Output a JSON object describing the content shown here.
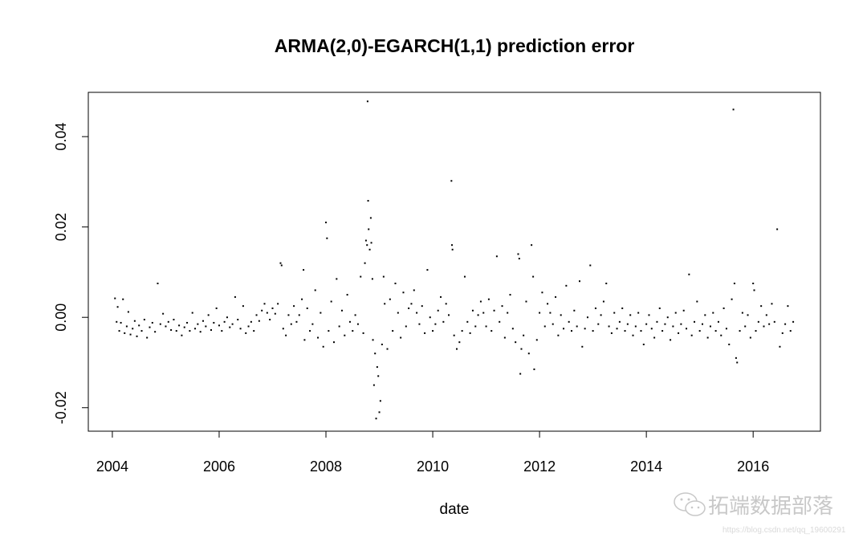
{
  "chart_data": {
    "type": "scatter",
    "title": "ARMA(2,0)-EGARCH(1,1) prediction error",
    "xlabel": "date",
    "ylabel": "",
    "xlim": [
      2003.55,
      2017.26
    ],
    "ylim": [
      -0.0252,
      0.0498
    ],
    "xticks": [
      2004,
      2006,
      2008,
      2010,
      2012,
      2014,
      2016
    ],
    "xtick_labels": [
      "2004",
      "2006",
      "2008",
      "2010",
      "2012",
      "2014",
      "2016"
    ],
    "yticks": [
      -0.02,
      0.0,
      0.02,
      0.04
    ],
    "ytick_labels": [
      "-0.02",
      "0.00",
      "0.02",
      "0.04"
    ],
    "grid": false,
    "marker_color": "#000000",
    "points": [
      [
        2004.05,
        0.0042
      ],
      [
        2004.08,
        -0.001
      ],
      [
        2004.1,
        0.0023
      ],
      [
        2004.13,
        -0.003
      ],
      [
        2004.16,
        -0.0012
      ],
      [
        2004.2,
        0.004
      ],
      [
        2004.23,
        -0.0035
      ],
      [
        2004.27,
        -0.002
      ],
      [
        2004.3,
        0.0012
      ],
      [
        2004.34,
        -0.0038
      ],
      [
        2004.38,
        -0.0025
      ],
      [
        2004.42,
        -0.0008
      ],
      [
        2004.46,
        -0.0042
      ],
      [
        2004.5,
        -0.0018
      ],
      [
        2004.55,
        -0.003
      ],
      [
        2004.6,
        -0.0005
      ],
      [
        2004.65,
        -0.0045
      ],
      [
        2004.7,
        -0.0022
      ],
      [
        2004.75,
        -0.0012
      ],
      [
        2004.8,
        -0.0032
      ],
      [
        2004.85,
        0.0075
      ],
      [
        2004.9,
        -0.0015
      ],
      [
        2004.95,
        0.0008
      ],
      [
        2005.0,
        -0.002
      ],
      [
        2005.05,
        -0.001
      ],
      [
        2005.1,
        -0.0028
      ],
      [
        2005.15,
        -0.0005
      ],
      [
        2005.2,
        -0.003
      ],
      [
        2005.25,
        -0.0018
      ],
      [
        2005.3,
        -0.004
      ],
      [
        2005.35,
        -0.0022
      ],
      [
        2005.4,
        -0.0012
      ],
      [
        2005.45,
        -0.003
      ],
      [
        2005.5,
        0.001
      ],
      [
        2005.55,
        -0.0025
      ],
      [
        2005.6,
        -0.0015
      ],
      [
        2005.65,
        -0.0032
      ],
      [
        2005.7,
        -0.0008
      ],
      [
        2005.75,
        -0.002
      ],
      [
        2005.8,
        0.0005
      ],
      [
        2005.85,
        -0.0028
      ],
      [
        2005.9,
        -0.0012
      ],
      [
        2005.95,
        0.002
      ],
      [
        2006.0,
        -0.0018
      ],
      [
        2006.05,
        -0.003
      ],
      [
        2006.1,
        -0.001
      ],
      [
        2006.15,
        0.0
      ],
      [
        2006.2,
        -0.0022
      ],
      [
        2006.25,
        -0.0015
      ],
      [
        2006.3,
        0.0045
      ],
      [
        2006.35,
        -0.0005
      ],
      [
        2006.4,
        -0.0025
      ],
      [
        2006.45,
        0.0025
      ],
      [
        2006.5,
        -0.0035
      ],
      [
        2006.55,
        -0.002
      ],
      [
        2006.6,
        -0.001
      ],
      [
        2006.65,
        -0.003
      ],
      [
        2006.7,
        0.0005
      ],
      [
        2006.75,
        -0.0008
      ],
      [
        2006.8,
        0.0015
      ],
      [
        2006.85,
        0.003
      ],
      [
        2006.9,
        0.001
      ],
      [
        2006.95,
        -0.0005
      ],
      [
        2007.0,
        0.002
      ],
      [
        2007.05,
        0.0008
      ],
      [
        2007.1,
        0.003
      ],
      [
        2007.15,
        0.012
      ],
      [
        2007.17,
        0.0115
      ],
      [
        2007.2,
        -0.0025
      ],
      [
        2007.25,
        -0.004
      ],
      [
        2007.3,
        0.0005
      ],
      [
        2007.35,
        -0.0015
      ],
      [
        2007.4,
        0.0025
      ],
      [
        2007.45,
        -0.001
      ],
      [
        2007.5,
        0.0005
      ],
      [
        2007.55,
        0.004
      ],
      [
        2007.58,
        0.0105
      ],
      [
        2007.6,
        -0.005
      ],
      [
        2007.65,
        0.002
      ],
      [
        2007.7,
        -0.003
      ],
      [
        2007.75,
        -0.0015
      ],
      [
        2007.8,
        0.006
      ],
      [
        2007.85,
        -0.0045
      ],
      [
        2007.9,
        0.001
      ],
      [
        2007.95,
        -0.0065
      ],
      [
        2008.0,
        0.021
      ],
      [
        2008.02,
        0.0175
      ],
      [
        2008.05,
        -0.003
      ],
      [
        2008.1,
        0.0035
      ],
      [
        2008.15,
        -0.0055
      ],
      [
        2008.2,
        0.0085
      ],
      [
        2008.25,
        -0.002
      ],
      [
        2008.3,
        0.0015
      ],
      [
        2008.35,
        -0.004
      ],
      [
        2008.4,
        0.005
      ],
      [
        2008.45,
        -0.001
      ],
      [
        2008.5,
        -0.003
      ],
      [
        2008.55,
        0.0005
      ],
      [
        2008.6,
        -0.0015
      ],
      [
        2008.65,
        0.009
      ],
      [
        2008.7,
        -0.0035
      ],
      [
        2008.73,
        0.012
      ],
      [
        2008.75,
        0.017
      ],
      [
        2008.77,
        0.016
      ],
      [
        2008.78,
        0.0478
      ],
      [
        2008.79,
        0.0258
      ],
      [
        2008.8,
        0.0195
      ],
      [
        2008.82,
        0.015
      ],
      [
        2008.84,
        0.022
      ],
      [
        2008.85,
        0.0165
      ],
      [
        2008.87,
        0.0085
      ],
      [
        2008.88,
        -0.005
      ],
      [
        2008.9,
        -0.015
      ],
      [
        2008.92,
        -0.008
      ],
      [
        2008.94,
        -0.0224
      ],
      [
        2008.96,
        -0.011
      ],
      [
        2008.98,
        -0.013
      ],
      [
        2009.0,
        -0.021
      ],
      [
        2009.02,
        -0.0185
      ],
      [
        2009.05,
        -0.006
      ],
      [
        2009.08,
        0.009
      ],
      [
        2009.1,
        0.003
      ],
      [
        2009.15,
        -0.007
      ],
      [
        2009.2,
        0.004
      ],
      [
        2009.25,
        -0.003
      ],
      [
        2009.3,
        0.0075
      ],
      [
        2009.35,
        0.001
      ],
      [
        2009.4,
        -0.0045
      ],
      [
        2009.45,
        0.0055
      ],
      [
        2009.5,
        -0.002
      ],
      [
        2009.55,
        0.002
      ],
      [
        2009.6,
        0.003
      ],
      [
        2009.65,
        0.006
      ],
      [
        2009.7,
        0.001
      ],
      [
        2009.75,
        -0.0015
      ],
      [
        2009.8,
        0.0025
      ],
      [
        2009.85,
        -0.0035
      ],
      [
        2009.9,
        0.0105
      ],
      [
        2009.95,
        0.0
      ],
      [
        2010.0,
        -0.003
      ],
      [
        2010.05,
        -0.0015
      ],
      [
        2010.1,
        0.0015
      ],
      [
        2010.15,
        0.0045
      ],
      [
        2010.2,
        -0.001
      ],
      [
        2010.25,
        0.003
      ],
      [
        2010.3,
        0.0005
      ],
      [
        2010.35,
        0.0302
      ],
      [
        2010.36,
        0.016
      ],
      [
        2010.37,
        0.015
      ],
      [
        2010.4,
        -0.004
      ],
      [
        2010.45,
        -0.007
      ],
      [
        2010.5,
        -0.0055
      ],
      [
        2010.55,
        -0.003
      ],
      [
        2010.6,
        0.009
      ],
      [
        2010.65,
        -0.001
      ],
      [
        2010.7,
        -0.0035
      ],
      [
        2010.75,
        0.0015
      ],
      [
        2010.8,
        -0.002
      ],
      [
        2010.85,
        0.0005
      ],
      [
        2010.9,
        0.0035
      ],
      [
        2010.95,
        0.001
      ],
      [
        2011.0,
        -0.002
      ],
      [
        2011.05,
        0.004
      ],
      [
        2011.1,
        -0.003
      ],
      [
        2011.15,
        0.0015
      ],
      [
        2011.2,
        0.0135
      ],
      [
        2011.25,
        -0.001
      ],
      [
        2011.3,
        0.0025
      ],
      [
        2011.35,
        -0.0045
      ],
      [
        2011.4,
        0.001
      ],
      [
        2011.45,
        0.005
      ],
      [
        2011.5,
        -0.0025
      ],
      [
        2011.55,
        -0.0055
      ],
      [
        2011.6,
        0.014
      ],
      [
        2011.62,
        0.013
      ],
      [
        2011.64,
        -0.0125
      ],
      [
        2011.66,
        -0.007
      ],
      [
        2011.7,
        -0.004
      ],
      [
        2011.75,
        0.0035
      ],
      [
        2011.8,
        -0.008
      ],
      [
        2011.85,
        0.016
      ],
      [
        2011.88,
        0.009
      ],
      [
        2011.9,
        -0.0115
      ],
      [
        2011.95,
        -0.005
      ],
      [
        2012.0,
        0.001
      ],
      [
        2012.05,
        0.0055
      ],
      [
        2012.1,
        -0.002
      ],
      [
        2012.15,
        0.003
      ],
      [
        2012.2,
        0.001
      ],
      [
        2012.25,
        -0.0015
      ],
      [
        2012.3,
        0.0045
      ],
      [
        2012.35,
        -0.004
      ],
      [
        2012.4,
        0.0005
      ],
      [
        2012.45,
        -0.0025
      ],
      [
        2012.5,
        0.007
      ],
      [
        2012.55,
        -0.001
      ],
      [
        2012.6,
        -0.003
      ],
      [
        2012.65,
        0.0015
      ],
      [
        2012.7,
        -0.002
      ],
      [
        2012.75,
        0.008
      ],
      [
        2012.8,
        -0.0065
      ],
      [
        2012.85,
        -0.0025
      ],
      [
        2012.9,
        0.0
      ],
      [
        2012.95,
        0.0115
      ],
      [
        2013.0,
        -0.003
      ],
      [
        2013.05,
        0.002
      ],
      [
        2013.1,
        -0.0015
      ],
      [
        2013.15,
        0.0005
      ],
      [
        2013.2,
        0.0035
      ],
      [
        2013.25,
        0.0075
      ],
      [
        2013.3,
        -0.002
      ],
      [
        2013.35,
        -0.0035
      ],
      [
        2013.4,
        0.001
      ],
      [
        2013.45,
        -0.0025
      ],
      [
        2013.5,
        -0.001
      ],
      [
        2013.55,
        0.002
      ],
      [
        2013.6,
        -0.003
      ],
      [
        2013.65,
        -0.0015
      ],
      [
        2013.7,
        0.0005
      ],
      [
        2013.75,
        -0.004
      ],
      [
        2013.8,
        -0.002
      ],
      [
        2013.85,
        0.001
      ],
      [
        2013.9,
        -0.003
      ],
      [
        2013.95,
        -0.006
      ],
      [
        2014.0,
        -0.0015
      ],
      [
        2014.05,
        0.0005
      ],
      [
        2014.1,
        -0.0025
      ],
      [
        2014.15,
        -0.0045
      ],
      [
        2014.2,
        -0.001
      ],
      [
        2014.25,
        0.002
      ],
      [
        2014.3,
        -0.003
      ],
      [
        2014.35,
        -0.0015
      ],
      [
        2014.4,
        0.0
      ],
      [
        2014.45,
        -0.005
      ],
      [
        2014.5,
        -0.002
      ],
      [
        2014.55,
        0.001
      ],
      [
        2014.6,
        -0.0035
      ],
      [
        2014.65,
        -0.0015
      ],
      [
        2014.7,
        0.0015
      ],
      [
        2014.75,
        -0.0025
      ],
      [
        2014.8,
        0.0095
      ],
      [
        2014.85,
        -0.004
      ],
      [
        2014.9,
        -0.001
      ],
      [
        2014.95,
        0.0035
      ],
      [
        2015.0,
        -0.003
      ],
      [
        2015.05,
        -0.0015
      ],
      [
        2015.1,
        0.0005
      ],
      [
        2015.15,
        -0.0045
      ],
      [
        2015.2,
        -0.002
      ],
      [
        2015.25,
        0.001
      ],
      [
        2015.3,
        -0.003
      ],
      [
        2015.35,
        -0.001
      ],
      [
        2015.4,
        -0.004
      ],
      [
        2015.45,
        0.002
      ],
      [
        2015.5,
        -0.0025
      ],
      [
        2015.55,
        -0.006
      ],
      [
        2015.6,
        0.004
      ],
      [
        2015.63,
        0.046
      ],
      [
        2015.65,
        0.0075
      ],
      [
        2015.68,
        -0.009
      ],
      [
        2015.7,
        -0.01
      ],
      [
        2015.75,
        -0.003
      ],
      [
        2015.8,
        0.001
      ],
      [
        2015.85,
        -0.002
      ],
      [
        2015.9,
        0.0005
      ],
      [
        2015.95,
        -0.0045
      ],
      [
        2016.0,
        0.0075
      ],
      [
        2016.02,
        0.006
      ],
      [
        2016.05,
        -0.003
      ],
      [
        2016.1,
        -0.001
      ],
      [
        2016.15,
        0.0025
      ],
      [
        2016.2,
        -0.002
      ],
      [
        2016.25,
        0.0005
      ],
      [
        2016.3,
        -0.0015
      ],
      [
        2016.35,
        0.003
      ],
      [
        2016.4,
        -0.001
      ],
      [
        2016.45,
        0.0195
      ],
      [
        2016.5,
        -0.0065
      ],
      [
        2016.55,
        -0.0035
      ],
      [
        2016.6,
        -0.0015
      ],
      [
        2016.65,
        0.0025
      ],
      [
        2016.7,
        -0.003
      ],
      [
        2016.75,
        -0.001
      ]
    ]
  },
  "watermark": {
    "brand": "拓端数据部落",
    "url": "https://blog.csdn.net/qq_19600291",
    "icon": "wechat-icon"
  }
}
